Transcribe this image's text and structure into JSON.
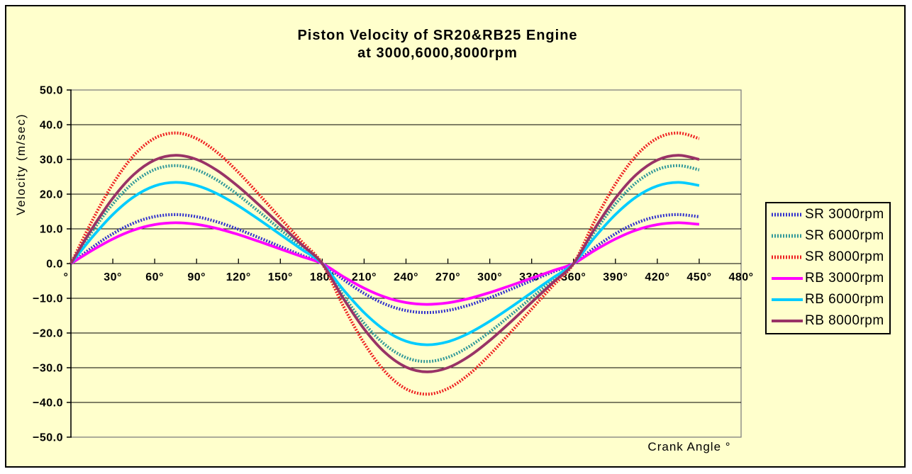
{
  "chart_data": {
    "type": "line",
    "title": "Piston Velocity of SR20&RB25 Engine",
    "subtitle": "at 3000,6000,8000rpm",
    "xlabel": "Crank Angle °",
    "ylabel": "Velocity (m/sec)",
    "xlim": [
      0,
      480
    ],
    "ylim": [
      -50,
      50
    ],
    "x_tick_interval": 30,
    "y_tick_interval": 10,
    "grid": "horizontal",
    "legend_position": "right",
    "background_color": "#FFFFCC",
    "plot_border_color": "#808080",
    "gridline_color": "#000000",
    "x_tick_values": [
      0,
      30,
      60,
      90,
      120,
      150,
      180,
      210,
      240,
      270,
      300,
      330,
      360,
      390,
      420,
      450,
      480
    ],
    "x_tick_labels": [
      "°",
      "30°",
      "60°",
      "90°",
      "120°",
      "150°",
      "180°",
      "210°",
      "240°",
      "270°",
      "300°",
      "330°",
      "360°",
      "390°",
      "420°",
      "450°",
      "480°"
    ],
    "y_tick_values": [
      50,
      40,
      30,
      20,
      10,
      0,
      -10,
      -20,
      -30,
      -40,
      -50
    ],
    "y_tick_labels": [
      "50.0",
      "40.0",
      "30.0",
      "20.0",
      "10.0",
      "0.0",
      "−10.0",
      "−20.0",
      "−30.0",
      "−40.0",
      "−50.0"
    ],
    "x": [
      0,
      15,
      30,
      45,
      60,
      75,
      90,
      105,
      120,
      135,
      150,
      165,
      180,
      195,
      210,
      225,
      240,
      255,
      270,
      285,
      300,
      315,
      330,
      345,
      360,
      375,
      390,
      405,
      420,
      435,
      450
    ],
    "series": [
      {
        "name": "SR 3000rpm",
        "color": "#3333CC",
        "line_style": "dotted",
        "values": [
          0,
          4.56,
          8.6,
          11.68,
          13.54,
          14.11,
          13.5,
          11.97,
          9.84,
          7.41,
          4.9,
          2.43,
          0,
          -4.56,
          -8.6,
          -11.68,
          -13.54,
          -14.11,
          -13.5,
          -11.97,
          -9.84,
          -7.41,
          -4.9,
          -2.43,
          0,
          4.56,
          8.6,
          11.68,
          13.54,
          14.11,
          13.5
        ]
      },
      {
        "name": "SR 6000rpm",
        "color": "#339999",
        "line_style": "dotted",
        "values": [
          0,
          9.12,
          17.19,
          23.36,
          27.08,
          28.21,
          27.0,
          23.95,
          19.69,
          14.83,
          9.81,
          4.85,
          0,
          -9.12,
          -17.19,
          -23.36,
          -27.08,
          -28.21,
          -27.0,
          -23.95,
          -19.69,
          -14.83,
          -9.81,
          -4.85,
          0,
          9.12,
          17.19,
          23.36,
          27.08,
          28.21,
          27.0
        ]
      },
      {
        "name": "SR 8000rpm",
        "color": "#EE2222",
        "line_style": "dotted",
        "values": [
          0,
          12.16,
          22.92,
          31.14,
          36.1,
          37.62,
          36.0,
          31.93,
          26.25,
          19.77,
          13.08,
          6.47,
          0,
          -12.16,
          -22.92,
          -31.14,
          -36.1,
          -37.62,
          -36.0,
          -31.93,
          -26.25,
          -19.77,
          -13.08,
          -6.47,
          0,
          12.16,
          22.92,
          31.14,
          36.1,
          37.62,
          36.0
        ]
      },
      {
        "name": "RB 3000rpm",
        "color": "#FF00FF",
        "line_style": "solid",
        "values": [
          0,
          3.76,
          7.09,
          9.66,
          11.23,
          11.75,
          11.3,
          10.08,
          8.34,
          6.32,
          4.21,
          2.09,
          0,
          -3.76,
          -7.09,
          -9.66,
          -11.23,
          -11.75,
          -11.3,
          -10.08,
          -8.34,
          -6.32,
          -4.21,
          -2.09,
          0,
          3.76,
          7.09,
          9.66,
          11.23,
          11.75,
          11.3
        ]
      },
      {
        "name": "RB 6000rpm",
        "color": "#00CCFF",
        "line_style": "solid",
        "values": [
          0,
          7.48,
          14.12,
          19.23,
          22.36,
          23.39,
          22.5,
          20.07,
          16.61,
          12.59,
          8.38,
          4.16,
          0,
          -7.48,
          -14.12,
          -19.23,
          -22.36,
          -23.39,
          -22.5,
          -20.07,
          -16.61,
          -12.59,
          -8.38,
          -4.16,
          0,
          7.48,
          14.12,
          19.23,
          22.36,
          23.39,
          22.5
        ]
      },
      {
        "name": "RB 8000rpm",
        "color": "#993366",
        "line_style": "solid",
        "values": [
          0,
          9.98,
          18.83,
          25.64,
          29.81,
          31.19,
          30.0,
          26.76,
          22.15,
          16.79,
          11.17,
          5.55,
          0,
          -9.98,
          -18.83,
          -25.64,
          -29.81,
          -31.19,
          -30.0,
          -26.76,
          -22.15,
          -16.79,
          -11.17,
          -5.55,
          0,
          9.98,
          18.83,
          25.64,
          29.81,
          31.19,
          30.0
        ]
      }
    ]
  }
}
